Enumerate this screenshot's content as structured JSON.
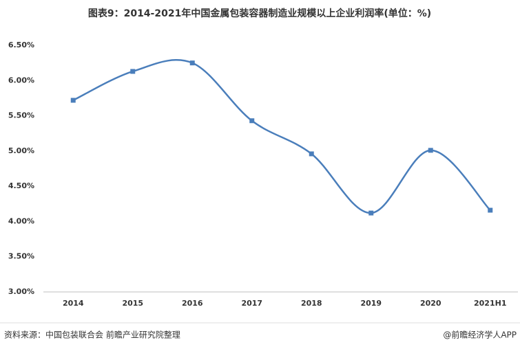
{
  "chart_data": {
    "type": "line",
    "title": "图表9：2014-2021年中国金属包装容器制造业规模以上企业利润率(单位：%)",
    "categories": [
      "2014",
      "2015",
      "2016",
      "2017",
      "2018",
      "2019",
      "2020",
      "2021H1"
    ],
    "values": [
      5.72,
      6.13,
      6.25,
      5.43,
      4.96,
      4.12,
      5.01,
      4.16
    ],
    "color": "#4a7ebb",
    "ylim": [
      3,
      6.5
    ],
    "yticks": [
      {
        "value": 3,
        "label": "3.00%"
      },
      {
        "value": 3.5,
        "label": "3.50%"
      },
      {
        "value": 4,
        "label": "4.00%"
      },
      {
        "value": 4.5,
        "label": "4.50%"
      },
      {
        "value": 5,
        "label": "5.00%"
      },
      {
        "value": 5.5,
        "label": "5.50%"
      },
      {
        "value": 6,
        "label": "6.00%"
      },
      {
        "value": 6.5,
        "label": "6.50%"
      }
    ],
    "grid": false,
    "source": "资料来源：中国包装联合会 前瞻产业研究院整理",
    "credit": "@前瞻经济学人APP"
  }
}
